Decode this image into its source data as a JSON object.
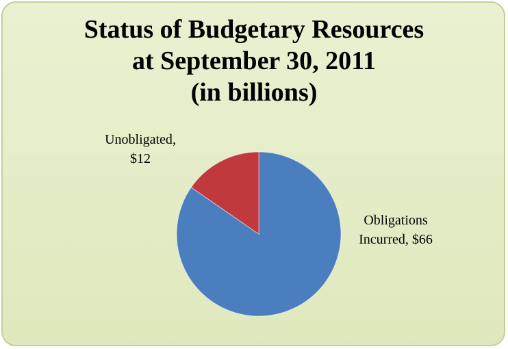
{
  "chart_data": {
    "type": "pie",
    "title": "Status of Budgetary Resources\nat September 30, 2011\n(in billions)",
    "categories": [
      "Obligations Incurred",
      "Unobligated"
    ],
    "values": [
      66,
      12
    ],
    "value_labels": [
      "$66",
      "$12"
    ],
    "colors": [
      "#4a7ebf",
      "#c0393c"
    ]
  }
}
